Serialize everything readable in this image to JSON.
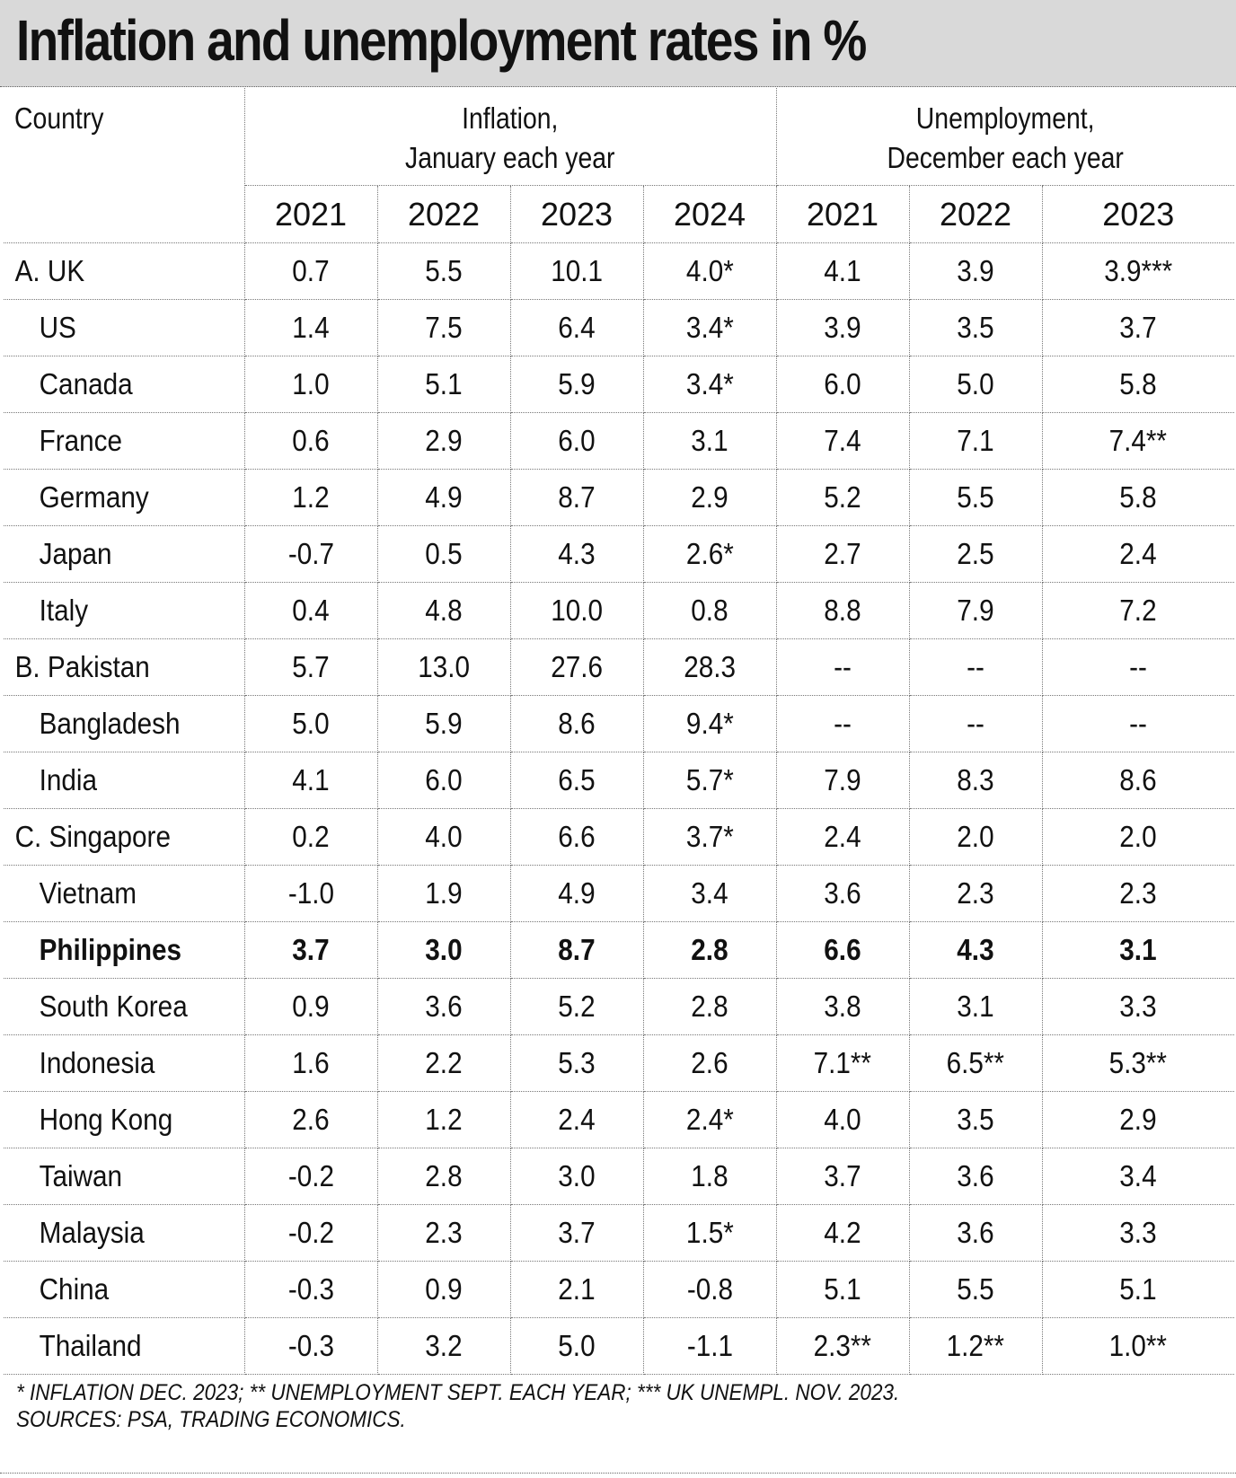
{
  "chart_data": {
    "type": "table",
    "title": "Inflation and unemployment rates in %",
    "header": {
      "country": "Country",
      "inflation_line1": "Inflation,",
      "inflation_line2": "January each year",
      "unemployment_line1": "Unemployment,",
      "unemployment_line2": "December each year"
    },
    "inflation_years": [
      "2021",
      "2022",
      "2023",
      "2024"
    ],
    "unemployment_years": [
      "2021",
      "2022",
      "2023"
    ],
    "rows": [
      {
        "country": "A. UK",
        "level": 0,
        "highlight": false,
        "inflation": [
          "0.7",
          "5.5",
          "10.1",
          "4.0*"
        ],
        "unemployment": [
          "4.1",
          "3.9",
          "3.9***"
        ]
      },
      {
        "country": "US",
        "level": 1,
        "highlight": false,
        "inflation": [
          "1.4",
          "7.5",
          "6.4",
          "3.4*"
        ],
        "unemployment": [
          "3.9",
          "3.5",
          "3.7"
        ]
      },
      {
        "country": "Canada",
        "level": 1,
        "highlight": false,
        "inflation": [
          "1.0",
          "5.1",
          "5.9",
          "3.4*"
        ],
        "unemployment": [
          "6.0",
          "5.0",
          "5.8"
        ]
      },
      {
        "country": "France",
        "level": 1,
        "highlight": false,
        "inflation": [
          "0.6",
          "2.9",
          "6.0",
          "3.1"
        ],
        "unemployment": [
          "7.4",
          "7.1",
          "7.4**"
        ]
      },
      {
        "country": "Germany",
        "level": 1,
        "highlight": false,
        "inflation": [
          "1.2",
          "4.9",
          "8.7",
          "2.9"
        ],
        "unemployment": [
          "5.2",
          "5.5",
          "5.8"
        ]
      },
      {
        "country": "Japan",
        "level": 1,
        "highlight": false,
        "inflation": [
          "-0.7",
          "0.5",
          "4.3",
          "2.6*"
        ],
        "unemployment": [
          "2.7",
          "2.5",
          "2.4"
        ]
      },
      {
        "country": "Italy",
        "level": 1,
        "highlight": false,
        "inflation": [
          "0.4",
          "4.8",
          "10.0",
          "0.8"
        ],
        "unemployment": [
          "8.8",
          "7.9",
          "7.2"
        ]
      },
      {
        "country": "B. Pakistan",
        "level": 0,
        "highlight": false,
        "inflation": [
          "5.7",
          "13.0",
          "27.6",
          "28.3"
        ],
        "unemployment": [
          "--",
          "--",
          "--"
        ]
      },
      {
        "country": "Bangladesh",
        "level": 1,
        "highlight": false,
        "inflation": [
          "5.0",
          "5.9",
          "8.6",
          "9.4*"
        ],
        "unemployment": [
          "--",
          "--",
          "--"
        ]
      },
      {
        "country": "India",
        "level": 1,
        "highlight": false,
        "inflation": [
          "4.1",
          "6.0",
          "6.5",
          "5.7*"
        ],
        "unemployment": [
          "7.9",
          "8.3",
          "8.6"
        ]
      },
      {
        "country": "C. Singapore",
        "level": 0,
        "highlight": false,
        "inflation": [
          "0.2",
          "4.0",
          "6.6",
          "3.7*"
        ],
        "unemployment": [
          "2.4",
          "2.0",
          "2.0"
        ]
      },
      {
        "country": "Vietnam",
        "level": 1,
        "highlight": false,
        "inflation": [
          "-1.0",
          "1.9",
          "4.9",
          "3.4"
        ],
        "unemployment": [
          "3.6",
          "2.3",
          "2.3"
        ]
      },
      {
        "country": "Philippines",
        "level": 1,
        "highlight": true,
        "inflation": [
          "3.7",
          "3.0",
          "8.7",
          "2.8"
        ],
        "unemployment": [
          "6.6",
          "4.3",
          "3.1"
        ]
      },
      {
        "country": "South Korea",
        "level": 1,
        "highlight": false,
        "inflation": [
          "0.9",
          "3.6",
          "5.2",
          "2.8"
        ],
        "unemployment": [
          "3.8",
          "3.1",
          "3.3"
        ]
      },
      {
        "country": "Indonesia",
        "level": 1,
        "highlight": false,
        "inflation": [
          "1.6",
          "2.2",
          "5.3",
          "2.6"
        ],
        "unemployment": [
          "7.1**",
          "6.5**",
          "5.3**"
        ]
      },
      {
        "country": "Hong Kong",
        "level": 1,
        "highlight": false,
        "inflation": [
          "2.6",
          "1.2",
          "2.4",
          "2.4*"
        ],
        "unemployment": [
          "4.0",
          "3.5",
          "2.9"
        ]
      },
      {
        "country": "Taiwan",
        "level": 1,
        "highlight": false,
        "inflation": [
          "-0.2",
          "2.8",
          "3.0",
          "1.8"
        ],
        "unemployment": [
          "3.7",
          "3.6",
          "3.4"
        ]
      },
      {
        "country": "Malaysia",
        "level": 1,
        "highlight": false,
        "inflation": [
          "-0.2",
          "2.3",
          "3.7",
          "1.5*"
        ],
        "unemployment": [
          "4.2",
          "3.6",
          "3.3"
        ]
      },
      {
        "country": "China",
        "level": 1,
        "highlight": false,
        "inflation": [
          "-0.3",
          "0.9",
          "2.1",
          "-0.8"
        ],
        "unemployment": [
          "5.1",
          "5.5",
          "5.1"
        ]
      },
      {
        "country": "Thailand",
        "level": 1,
        "highlight": false,
        "inflation": [
          "-0.3",
          "3.2",
          "5.0",
          "-1.1"
        ],
        "unemployment": [
          "2.3**",
          "1.2**",
          "1.0**"
        ]
      }
    ],
    "footnotes": [
      "* INFLATION DEC. 2023;  ** UNEMPLOYMENT SEPT. EACH YEAR; *** UK UNEMPL. NOV. 2023.",
      "SOURCES: PSA, TRADING ECONOMICS."
    ]
  }
}
